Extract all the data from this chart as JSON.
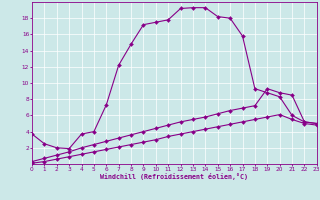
{
  "xlabel": "Windchill (Refroidissement éolien,°C)",
  "bg_color": "#cce8e8",
  "line_color": "#880088",
  "xlim": [
    0,
    23
  ],
  "ylim": [
    0,
    20
  ],
  "xticks": [
    0,
    1,
    2,
    3,
    4,
    5,
    6,
    7,
    8,
    9,
    10,
    11,
    12,
    13,
    14,
    15,
    16,
    17,
    18,
    19,
    20,
    21,
    22,
    23
  ],
  "yticks": [
    2,
    4,
    6,
    8,
    10,
    12,
    14,
    16,
    18
  ],
  "line1_x": [
    0,
    1,
    2,
    3,
    4,
    5,
    6,
    7,
    8,
    9,
    10,
    11,
    12,
    13,
    14,
    15,
    16,
    17,
    18,
    19,
    20,
    21,
    22,
    23
  ],
  "line1_y": [
    3.7,
    2.5,
    2.0,
    1.9,
    3.7,
    4.0,
    7.3,
    12.2,
    14.8,
    17.2,
    17.5,
    17.8,
    19.2,
    19.3,
    19.3,
    18.2,
    18.0,
    15.8,
    9.3,
    8.8,
    8.3,
    6.0,
    5.2,
    5.0
  ],
  "line2_x": [
    0,
    1,
    2,
    3,
    4,
    5,
    6,
    7,
    8,
    9,
    10,
    11,
    12,
    13,
    14,
    15,
    16,
    17,
    18,
    19,
    20,
    21,
    22,
    23
  ],
  "line2_y": [
    0.3,
    0.7,
    1.1,
    1.5,
    2.0,
    2.4,
    2.8,
    3.2,
    3.6,
    4.0,
    4.4,
    4.8,
    5.2,
    5.5,
    5.8,
    6.2,
    6.6,
    6.9,
    7.2,
    9.3,
    8.8,
    8.5,
    5.2,
    5.0
  ],
  "line3_x": [
    0,
    1,
    2,
    3,
    4,
    5,
    6,
    7,
    8,
    9,
    10,
    11,
    12,
    13,
    14,
    15,
    16,
    17,
    18,
    19,
    20,
    21,
    22,
    23
  ],
  "line3_y": [
    0.1,
    0.3,
    0.6,
    0.9,
    1.2,
    1.5,
    1.8,
    2.1,
    2.4,
    2.7,
    3.0,
    3.4,
    3.7,
    4.0,
    4.3,
    4.6,
    4.9,
    5.2,
    5.5,
    5.8,
    6.1,
    5.5,
    5.0,
    4.8
  ]
}
